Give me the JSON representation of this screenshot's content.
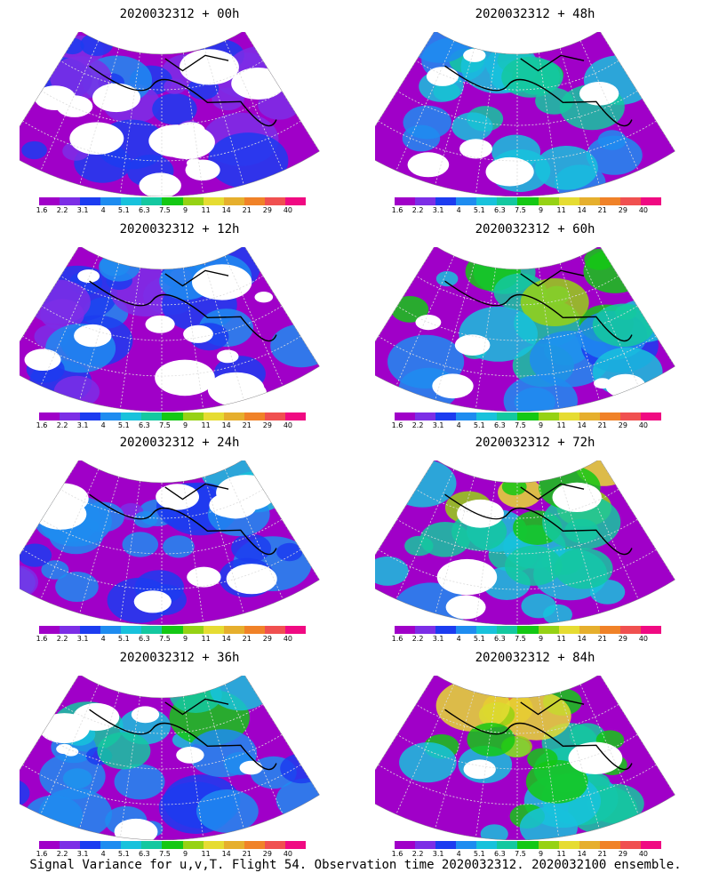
{
  "panels": [
    {
      "title": "2020032312 + 00h",
      "intensity": 0.15
    },
    {
      "title": "2020032312 + 48h",
      "intensity": 0.55
    },
    {
      "title": "2020032312 + 12h",
      "intensity": 0.25
    },
    {
      "title": "2020032312 + 60h",
      "intensity": 0.65
    },
    {
      "title": "2020032312 + 24h",
      "intensity": 0.35
    },
    {
      "title": "2020032312 + 72h",
      "intensity": 0.75
    },
    {
      "title": "2020032312 + 36h",
      "intensity": 0.45
    },
    {
      "title": "2020032312 + 84h",
      "intensity": 0.85
    }
  ],
  "colorbar": {
    "labels": [
      "1.6",
      "2.2",
      "3.1",
      "4",
      "5.1",
      "6.3",
      "7.5",
      "9",
      "11",
      "14",
      "21",
      "29",
      "40"
    ],
    "colors": [
      "#a000c8",
      "#7c2ee6",
      "#1c3cf0",
      "#1e8cf0",
      "#18c2dc",
      "#14c8a0",
      "#14c814",
      "#96d214",
      "#e6dc32",
      "#e6af2d",
      "#f08228",
      "#f05050",
      "#f00a82"
    ]
  },
  "caption": "Signal Variance for u,v,T. Flight 54. Observation time 2020032312. 2020032100 ensemble."
}
